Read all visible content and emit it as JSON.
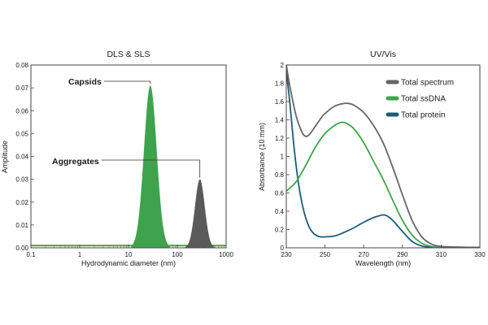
{
  "chart_data": [
    {
      "type": "area",
      "title": "DLS & SLS",
      "xlabel": "Hydrodynamic diameter (nm)",
      "ylabel": "Amplitude",
      "xscale": "log",
      "xlim": [
        0.1,
        1000
      ],
      "ylim": [
        0,
        0.08
      ],
      "x_ticks": [
        "0.1",
        "1",
        "10",
        "100",
        "1000"
      ],
      "x_tick_values": [
        0.1,
        1,
        10,
        100,
        1000
      ],
      "y_ticks": [
        "0.00",
        "0.01",
        "0.02",
        "0.03",
        "0.04",
        "0.05",
        "0.06",
        "0.07",
        "0.08"
      ],
      "y_tick_values": [
        0,
        0.01,
        0.02,
        0.03,
        0.04,
        0.05,
        0.06,
        0.07,
        0.08
      ],
      "baseline": 0.001,
      "series": [
        {
          "name": "Capsids",
          "color": "#3fa34d",
          "peak_x": 28,
          "peak_y": 0.071,
          "log_width": 0.13
        },
        {
          "name": "Aggregates",
          "color": "#5a5a5a",
          "peak_x": 290,
          "peak_y": 0.03,
          "log_width": 0.1
        }
      ],
      "annotations": [
        {
          "text": "Capsids",
          "target_series": 0
        },
        {
          "text": "Aggregates",
          "target_series": 1
        }
      ]
    },
    {
      "type": "line",
      "title": "UV/Vis",
      "xlabel": "Wavelength (nm)",
      "ylabel": "Absorbance (10 mm)",
      "xlim": [
        230,
        330
      ],
      "ylim": [
        0,
        2
      ],
      "x_ticks": [
        "230",
        "250",
        "270",
        "290",
        "310",
        "330"
      ],
      "x_tick_values": [
        230,
        250,
        270,
        290,
        310,
        330
      ],
      "y_ticks": [
        "0",
        "0.2",
        "0.4",
        "0.6",
        "0.8",
        "1",
        "1.2",
        "1.4",
        "1.6",
        "1.8",
        "2"
      ],
      "y_tick_values": [
        0,
        0.2,
        0.4,
        0.6,
        0.8,
        1.0,
        1.2,
        1.4,
        1.6,
        1.8,
        2.0
      ],
      "legend_position": "top-right",
      "series": [
        {
          "name": "Total spectrum",
          "color": "#666666",
          "x": [
            230,
            232,
            235,
            238,
            240,
            242,
            245,
            248,
            250,
            255,
            260,
            262,
            265,
            270,
            275,
            280,
            285,
            290,
            295,
            300,
            305,
            310,
            315,
            320,
            325,
            330
          ],
          "y": [
            2.0,
            1.75,
            1.45,
            1.27,
            1.22,
            1.24,
            1.33,
            1.42,
            1.47,
            1.55,
            1.58,
            1.58,
            1.56,
            1.48,
            1.34,
            1.15,
            0.88,
            0.58,
            0.3,
            0.12,
            0.04,
            0.015,
            0.01,
            0.008,
            0.005,
            0.005
          ]
        },
        {
          "name": "Total ssDNA",
          "color": "#3fa34d",
          "x": [
            230,
            235,
            240,
            245,
            250,
            255,
            258,
            260,
            262,
            265,
            270,
            275,
            280,
            285,
            290,
            295,
            300,
            305,
            310,
            315,
            320,
            325,
            330
          ],
          "y": [
            0.62,
            0.72,
            0.9,
            1.1,
            1.25,
            1.34,
            1.37,
            1.37,
            1.35,
            1.3,
            1.15,
            0.95,
            0.75,
            0.52,
            0.3,
            0.14,
            0.05,
            0.015,
            0.005,
            0.003,
            0.002,
            0.002,
            0.002
          ]
        },
        {
          "name": "Total protein",
          "color": "#1f5c78",
          "x": [
            230,
            232,
            234,
            236,
            238,
            240,
            242,
            244,
            246,
            248,
            250,
            255,
            260,
            265,
            270,
            275,
            278,
            280,
            282,
            285,
            290,
            295,
            300,
            305,
            310,
            315,
            320,
            325,
            330
          ],
          "y": [
            1.95,
            1.55,
            1.1,
            0.75,
            0.5,
            0.33,
            0.22,
            0.16,
            0.13,
            0.12,
            0.12,
            0.13,
            0.17,
            0.22,
            0.28,
            0.33,
            0.35,
            0.36,
            0.35,
            0.3,
            0.18,
            0.07,
            0.02,
            0.008,
            0.004,
            0.003,
            0.002,
            0.002,
            0.002
          ]
        }
      ]
    }
  ]
}
